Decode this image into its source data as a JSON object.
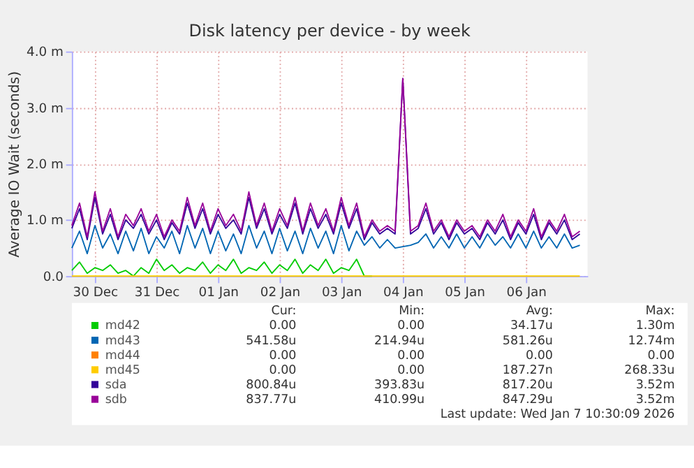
{
  "chart_data": {
    "type": "line",
    "title": "Disk latency per device - by week",
    "ylabel": "Average IO Wait (seconds)",
    "x": [
      "2025-12-30T03:00",
      "2025-12-30T06:00",
      "2025-12-30T09:00",
      "2025-12-30T12:00",
      "2025-12-30T15:00",
      "2025-12-30T18:00",
      "2025-12-30T21:00",
      "2025-12-31T00:00",
      "2025-12-31T03:00",
      "2025-12-31T06:00",
      "2025-12-31T09:00",
      "2025-12-31T12:00",
      "2025-12-31T15:00",
      "2025-12-31T18:00",
      "2025-12-31T21:00",
      "2026-01-01T00:00",
      "2026-01-01T03:00",
      "2026-01-01T06:00",
      "2026-01-01T09:00",
      "2026-01-01T12:00",
      "2026-01-01T15:00",
      "2026-01-01T18:00",
      "2026-01-01T21:00",
      "2026-01-02T00:00",
      "2026-01-02T03:00",
      "2026-01-02T06:00",
      "2026-01-02T09:00",
      "2026-01-02T12:00",
      "2026-01-02T15:00",
      "2026-01-02T18:00",
      "2026-01-02T21:00",
      "2026-01-03T00:00",
      "2026-01-03T03:00",
      "2026-01-03T06:00",
      "2026-01-03T09:00",
      "2026-01-03T12:00",
      "2026-01-03T15:00",
      "2026-01-03T18:00",
      "2026-01-03T21:00",
      "2026-01-04T00:00",
      "2026-01-04T03:00",
      "2026-01-04T06:00",
      "2026-01-04T09:00",
      "2026-01-04T12:00",
      "2026-01-04T15:00",
      "2026-01-04T18:00",
      "2026-01-04T21:00",
      "2026-01-05T00:00",
      "2026-01-05T03:00",
      "2026-01-05T06:00",
      "2026-01-05T09:00",
      "2026-01-05T12:00",
      "2026-01-05T15:00",
      "2026-01-05T18:00",
      "2026-01-05T21:00",
      "2026-01-06T00:00",
      "2026-01-06T03:00",
      "2026-01-06T06:00",
      "2026-01-06T09:00",
      "2026-01-06T12:00",
      "2026-01-06T15:00",
      "2026-01-06T18:00",
      "2026-01-06T21:00",
      "2026-01-07T00:00",
      "2026-01-07T03:00",
      "2026-01-07T06:00",
      "2026-01-07T09:00"
    ],
    "series": [
      {
        "name": "md42",
        "color": "#00cc00",
        "values": [
          0.1,
          0.25,
          0.05,
          0.15,
          0.1,
          0.2,
          0.05,
          0.1,
          0,
          0.15,
          0.05,
          0.3,
          0.1,
          0.2,
          0.05,
          0.15,
          0.1,
          0.25,
          0.05,
          0.2,
          0.1,
          0.3,
          0.05,
          0.15,
          0.1,
          0.25,
          0.05,
          0.2,
          0.1,
          0.3,
          0.05,
          0.2,
          0.1,
          0.3,
          0.05,
          0.15,
          0.1,
          0.3,
          0,
          0,
          null,
          null,
          null,
          null,
          null,
          null,
          null,
          null,
          null,
          null,
          null,
          null,
          null,
          null,
          null,
          null,
          null,
          null,
          null,
          null,
          null,
          null,
          null,
          null,
          null,
          null,
          null
        ]
      },
      {
        "name": "md43",
        "color": "#0066b3",
        "values": [
          0.5,
          0.8,
          0.4,
          0.9,
          0.5,
          0.75,
          0.4,
          0.8,
          0.45,
          0.85,
          0.4,
          0.7,
          0.5,
          0.8,
          0.4,
          0.9,
          0.5,
          0.85,
          0.4,
          0.8,
          0.45,
          0.75,
          0.4,
          0.9,
          0.5,
          0.8,
          0.4,
          0.85,
          0.45,
          0.8,
          0.4,
          0.85,
          0.5,
          0.8,
          0.4,
          0.9,
          0.45,
          0.8,
          0.55,
          0.7,
          0.5,
          0.65,
          0.5,
          null,
          0.55,
          0.6,
          0.75,
          0.5,
          0.7,
          0.5,
          0.75,
          0.5,
          0.7,
          0.5,
          0.75,
          0.55,
          0.7,
          0.5,
          0.75,
          0.5,
          0.8,
          0.5,
          0.7,
          0.5,
          0.75,
          0.5,
          0.55
        ]
      },
      {
        "name": "md44",
        "color": "#ff8000",
        "values": [
          null,
          null,
          null,
          null,
          null,
          null,
          null,
          null,
          null,
          null,
          null,
          null,
          null,
          null,
          null,
          null,
          null,
          null,
          null,
          null,
          null,
          null,
          null,
          null,
          null,
          null,
          null,
          null,
          null,
          null,
          null,
          null,
          null,
          null,
          null,
          null,
          null,
          null,
          null,
          null,
          null,
          null,
          null,
          null,
          null,
          null,
          null,
          null,
          null,
          null,
          null,
          null,
          null,
          null,
          null,
          null,
          null,
          null,
          null,
          null,
          null,
          null,
          null,
          null,
          null,
          null,
          null
        ]
      },
      {
        "name": "md45",
        "color": "#ffcc00",
        "x": [
          "2025-12-30T03:00",
          "2026-01-07T09:00"
        ],
        "values": [
          0,
          0
        ]
      },
      {
        "name": "sda",
        "color": "#330099",
        "values": [
          0.85,
          1.2,
          0.65,
          1.4,
          0.75,
          1.1,
          0.65,
          1.0,
          0.85,
          1.1,
          0.75,
          1.0,
          0.65,
          0.95,
          0.75,
          1.3,
          0.85,
          1.2,
          0.75,
          1.1,
          0.85,
          1.0,
          0.75,
          1.4,
          0.85,
          1.2,
          0.75,
          1.1,
          0.85,
          1.3,
          0.75,
          1.2,
          0.85,
          1.1,
          0.75,
          1.3,
          0.85,
          1.2,
          0.65,
          0.95,
          0.75,
          0.85,
          0.75,
          3.52,
          0.75,
          0.85,
          1.2,
          0.75,
          0.95,
          0.65,
          0.95,
          0.75,
          0.85,
          0.65,
          0.95,
          0.75,
          1.0,
          0.65,
          0.95,
          0.75,
          1.1,
          0.65,
          0.95,
          0.75,
          1.0,
          0.65,
          0.75
        ]
      },
      {
        "name": "sdb",
        "color": "#990099",
        "values": [
          0.9,
          1.3,
          0.7,
          1.5,
          0.8,
          1.2,
          0.7,
          1.1,
          0.9,
          1.2,
          0.8,
          1.1,
          0.7,
          1.0,
          0.8,
          1.4,
          0.9,
          1.3,
          0.8,
          1.2,
          0.9,
          1.1,
          0.8,
          1.5,
          0.9,
          1.3,
          0.8,
          1.2,
          0.9,
          1.4,
          0.8,
          1.3,
          0.9,
          1.2,
          0.8,
          1.4,
          0.9,
          1.3,
          0.7,
          1.0,
          0.8,
          0.9,
          0.8,
          3.52,
          0.8,
          0.9,
          1.3,
          0.8,
          1.0,
          0.7,
          1.0,
          0.8,
          0.9,
          0.7,
          1.0,
          0.8,
          1.1,
          0.7,
          1.0,
          0.8,
          1.2,
          0.7,
          1.0,
          0.8,
          1.1,
          0.7,
          0.8
        ]
      }
    ],
    "xlim": [
      "2025-12-30T03:00",
      "2026-01-07T12:00"
    ],
    "xticks": [
      {
        "value": "2025-12-30T12:00",
        "label": "30 Dec"
      },
      {
        "value": "2025-12-31T12:00",
        "label": "31 Dec"
      },
      {
        "value": "2026-01-01T12:00",
        "label": "01 Jan"
      },
      {
        "value": "2026-01-02T12:00",
        "label": "02 Jan"
      },
      {
        "value": "2026-01-03T12:00",
        "label": "03 Jan"
      },
      {
        "value": "2026-01-04T12:00",
        "label": "04 Jan"
      },
      {
        "value": "2026-01-05T12:00",
        "label": "05 Jan"
      },
      {
        "value": "2026-01-06T12:00",
        "label": "06 Jan"
      }
    ],
    "ylim": [
      0,
      4
    ],
    "yticks": [
      {
        "value": 0,
        "label": "0.0"
      },
      {
        "value": 1,
        "label": "1.0 m"
      },
      {
        "value": 2,
        "label": "2.0 m"
      },
      {
        "value": 3,
        "label": "3.0 m"
      },
      {
        "value": 4,
        "label": "4.0 m"
      }
    ],
    "grid": true,
    "legend": "bottom",
    "marker": "none",
    "line_style": "solid",
    "annotations": [
      "Cur:",
      "Min:",
      "Avg:",
      "Max:",
      "0.00",
      "0.00",
      "34.17u",
      "1.30m",
      "541.58u",
      "214.94u",
      "581.26u",
      "12.74m",
      "0.00",
      "0.00",
      "0.00",
      "0.00",
      "0.00",
      "0.00",
      "187.27n",
      "268.33u",
      "800.84u",
      "393.83u",
      "817.20u",
      "3.52m",
      "837.77u",
      "410.99u",
      "847.29u",
      "3.52m",
      "Last update: Wed Jan  7 10:30:09 2026"
    ]
  }
}
